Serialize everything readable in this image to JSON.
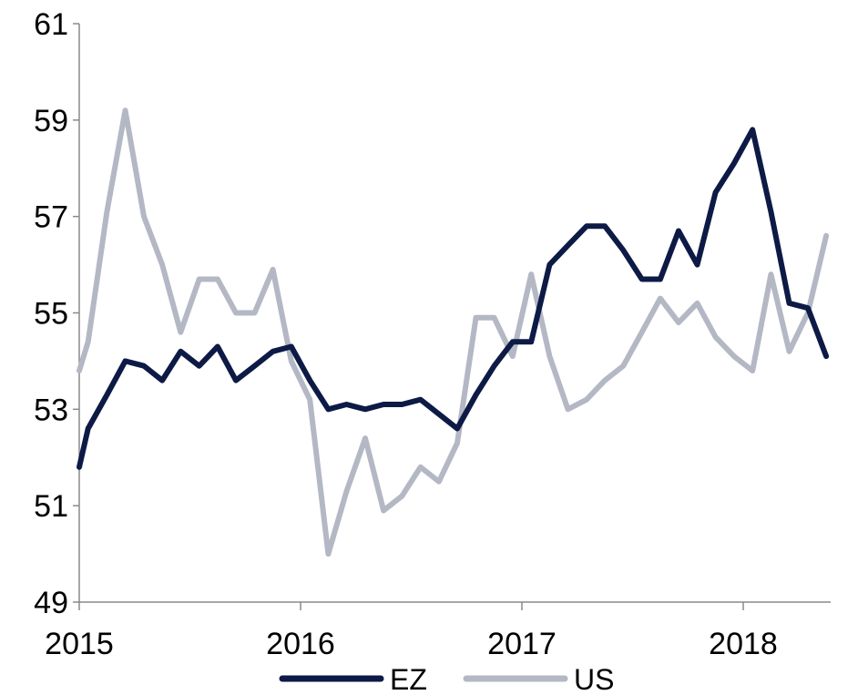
{
  "chart_data": {
    "type": "line",
    "title": "",
    "xlabel": "",
    "ylabel": "",
    "ylim": [
      49,
      61
    ],
    "xlim": [
      2015.0,
      2018.5
    ],
    "y_ticks": [
      49,
      51,
      53,
      55,
      57,
      59,
      61
    ],
    "y_tick_labels": [
      "49",
      "51",
      "53",
      "55",
      "57",
      "59",
      "61"
    ],
    "x_ticks": [
      2015,
      2016,
      2017,
      2018
    ],
    "x_tick_labels": [
      "2015",
      "2016",
      "2017",
      "2018"
    ],
    "grid": false,
    "legend_position": "bottom",
    "series": [
      {
        "name": "EZ",
        "color": "#0d1a45",
        "x": [
          2015.0,
          2015.04,
          2015.125,
          2015.208,
          2015.292,
          2015.375,
          2015.458,
          2015.542,
          2015.625,
          2015.708,
          2015.792,
          2015.875,
          2015.958,
          2016.042,
          2016.125,
          2016.208,
          2016.292,
          2016.375,
          2016.458,
          2016.542,
          2016.625,
          2016.708,
          2016.792,
          2016.875,
          2016.958,
          2017.042,
          2017.125,
          2017.208,
          2017.292,
          2017.375,
          2017.458,
          2017.542,
          2017.625,
          2017.708,
          2017.792,
          2017.875,
          2017.958,
          2018.042,
          2018.125,
          2018.208,
          2018.292,
          2018.375
        ],
        "y": [
          51.8,
          52.6,
          53.3,
          54.0,
          53.9,
          53.6,
          54.2,
          53.9,
          54.3,
          53.6,
          53.9,
          54.2,
          54.3,
          53.6,
          53.0,
          53.1,
          53.0,
          53.1,
          53.1,
          53.2,
          52.9,
          52.6,
          53.3,
          53.9,
          54.4,
          54.4,
          56.0,
          56.4,
          56.8,
          56.8,
          56.3,
          55.7,
          55.7,
          56.7,
          56.0,
          57.5,
          58.1,
          58.8,
          57.1,
          55.2,
          55.1,
          54.1
        ]
      },
      {
        "name": "US",
        "color": "#b3b8c4",
        "x": [
          2015.0,
          2015.04,
          2015.125,
          2015.208,
          2015.292,
          2015.375,
          2015.458,
          2015.542,
          2015.625,
          2015.708,
          2015.792,
          2015.875,
          2015.958,
          2016.042,
          2016.125,
          2016.208,
          2016.292,
          2016.375,
          2016.458,
          2016.542,
          2016.625,
          2016.708,
          2016.792,
          2016.875,
          2016.958,
          2017.042,
          2017.125,
          2017.208,
          2017.292,
          2017.375,
          2017.458,
          2017.542,
          2017.625,
          2017.708,
          2017.792,
          2017.875,
          2017.958,
          2018.042,
          2018.125,
          2018.208,
          2018.292,
          2018.375
        ],
        "y": [
          53.8,
          54.4,
          57.1,
          59.2,
          57.0,
          56.0,
          54.6,
          55.7,
          55.7,
          55.0,
          55.0,
          55.9,
          54.0,
          53.2,
          50.0,
          51.3,
          52.4,
          50.9,
          51.2,
          51.8,
          51.5,
          52.3,
          54.9,
          54.9,
          54.1,
          55.8,
          54.1,
          53.0,
          53.2,
          53.6,
          53.9,
          54.6,
          55.3,
          54.8,
          55.2,
          54.5,
          54.1,
          53.8,
          55.8,
          54.2,
          55.0,
          56.6
        ]
      }
    ]
  }
}
